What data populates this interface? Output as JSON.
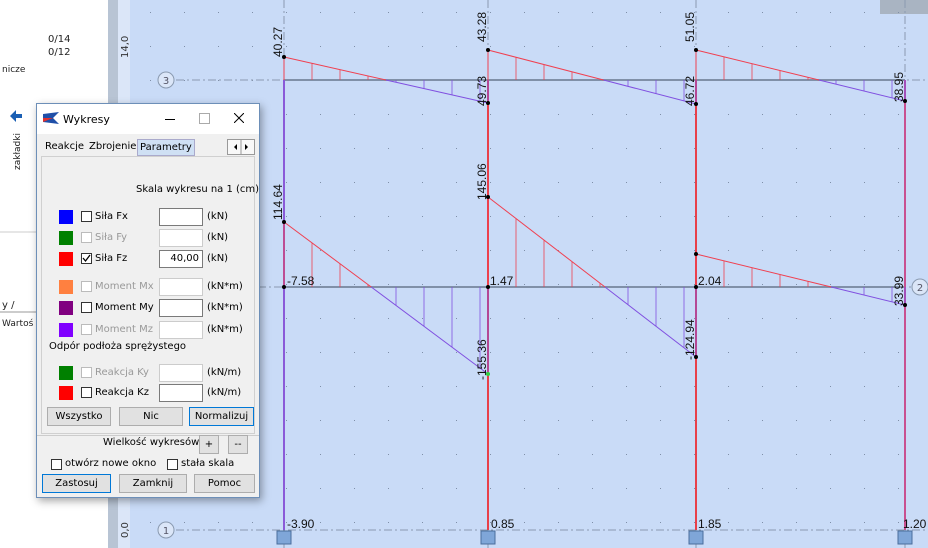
{
  "side_panel": {
    "items": [
      "0/14",
      "0/12"
    ],
    "label": "nicze",
    "tab": "zakładki",
    "tab_left": "y /",
    "tab_right": "Wartoś"
  },
  "drawing": {
    "ruler": [
      "14,0",
      "0,0"
    ],
    "levels": [
      "3",
      "2",
      "1"
    ],
    "labels": [
      "40.27",
      "43.28",
      "51.05",
      "49.73",
      "46.72",
      "38.95",
      "114.64",
      "145.06",
      "-155.36",
      "-124.94",
      "33.99",
      "-7.58",
      "1.47",
      "2.04",
      "-3.90",
      "0.85",
      "1.85",
      "1.20"
    ]
  },
  "dialog": {
    "title": "Wykresy",
    "tabs": [
      "Reakcje",
      "Zbrojenie",
      "Parametry"
    ],
    "scale_label": "Skala wykresu na 1  (cm)",
    "rows": [
      {
        "label": "Siła Fx",
        "value": "",
        "unit": "(kN)",
        "checked": false,
        "enabled": true,
        "color": "#0000ff"
      },
      {
        "label": "Siła Fy",
        "value": "",
        "unit": "(kN)",
        "checked": false,
        "enabled": false,
        "color": "#008000"
      },
      {
        "label": "Siła Fz",
        "value": "40,00",
        "unit": "(kN)",
        "checked": true,
        "enabled": true,
        "color": "#ff0000"
      },
      {
        "label": "Moment Mx",
        "value": "",
        "unit": "(kN*m)",
        "checked": false,
        "enabled": false,
        "color": "#ff8040"
      },
      {
        "label": "Moment My",
        "value": "",
        "unit": "(kN*m)",
        "checked": false,
        "enabled": true,
        "color": "#800080"
      },
      {
        "label": "Moment Mz",
        "value": "",
        "unit": "(kN*m)",
        "checked": false,
        "enabled": false,
        "color": "#8000ff"
      }
    ],
    "soil_label": "Odpór podłoża sprężystego",
    "soil_rows": [
      {
        "label": "Reakcja Ky",
        "value": "",
        "unit": "(kN/m)",
        "checked": false,
        "enabled": false,
        "color": "#008000"
      },
      {
        "label": "Reakcja Kz",
        "value": "",
        "unit": "(kN/m)",
        "checked": false,
        "enabled": true,
        "color": "#ff0000"
      }
    ],
    "select_buttons": [
      "Wszystko",
      "Nic",
      "Normalizuj"
    ],
    "size_label": "Wielkość wykresów :",
    "size_buttons": [
      "+",
      "--"
    ],
    "options": [
      "otwórz nowe okno",
      "stała  skala"
    ],
    "buttons": [
      "Zastosuj",
      "Zamknij",
      "Pomoc"
    ]
  }
}
